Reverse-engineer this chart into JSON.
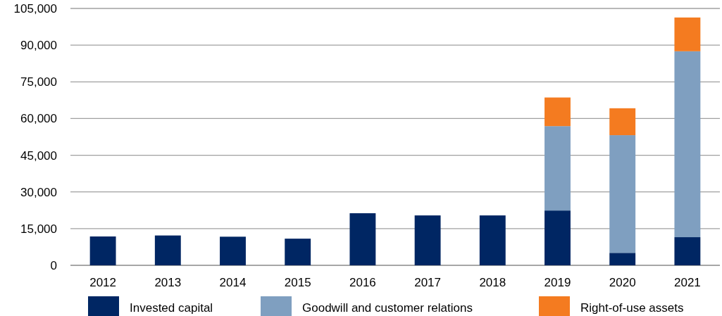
{
  "chart_data": {
    "type": "bar",
    "stacked": true,
    "categories": [
      "2012",
      "2013",
      "2014",
      "2015",
      "2016",
      "2017",
      "2018",
      "2019",
      "2020",
      "2021"
    ],
    "series": [
      {
        "name": "Invested capital",
        "color": "#002663",
        "values": [
          11800,
          12200,
          11700,
          10900,
          21300,
          20400,
          20400,
          22400,
          5100,
          11500
        ]
      },
      {
        "name": "Goodwill and customer relations",
        "color": "#7f9fc0",
        "values": [
          null,
          null,
          null,
          null,
          null,
          null,
          null,
          34500,
          48100,
          76000
        ]
      },
      {
        "name": "Right-of-use assets",
        "color": "#f47b20",
        "values": [
          null,
          null,
          null,
          null,
          null,
          null,
          null,
          11700,
          11000,
          13800
        ]
      }
    ],
    "ylim": [
      0,
      105000
    ],
    "yticks": [
      {
        "value": 0,
        "label": "0"
      },
      {
        "value": 15000,
        "label": "15,000"
      },
      {
        "value": 30000,
        "label": "30,000"
      },
      {
        "value": 45000,
        "label": "45,000"
      },
      {
        "value": 60000,
        "label": "60,000"
      },
      {
        "value": 75000,
        "label": "75,000"
      },
      {
        "value": 90000,
        "label": "90,000"
      },
      {
        "value": 105000,
        "label": "105,000"
      }
    ],
    "grid": "y",
    "legend": "bottom"
  }
}
